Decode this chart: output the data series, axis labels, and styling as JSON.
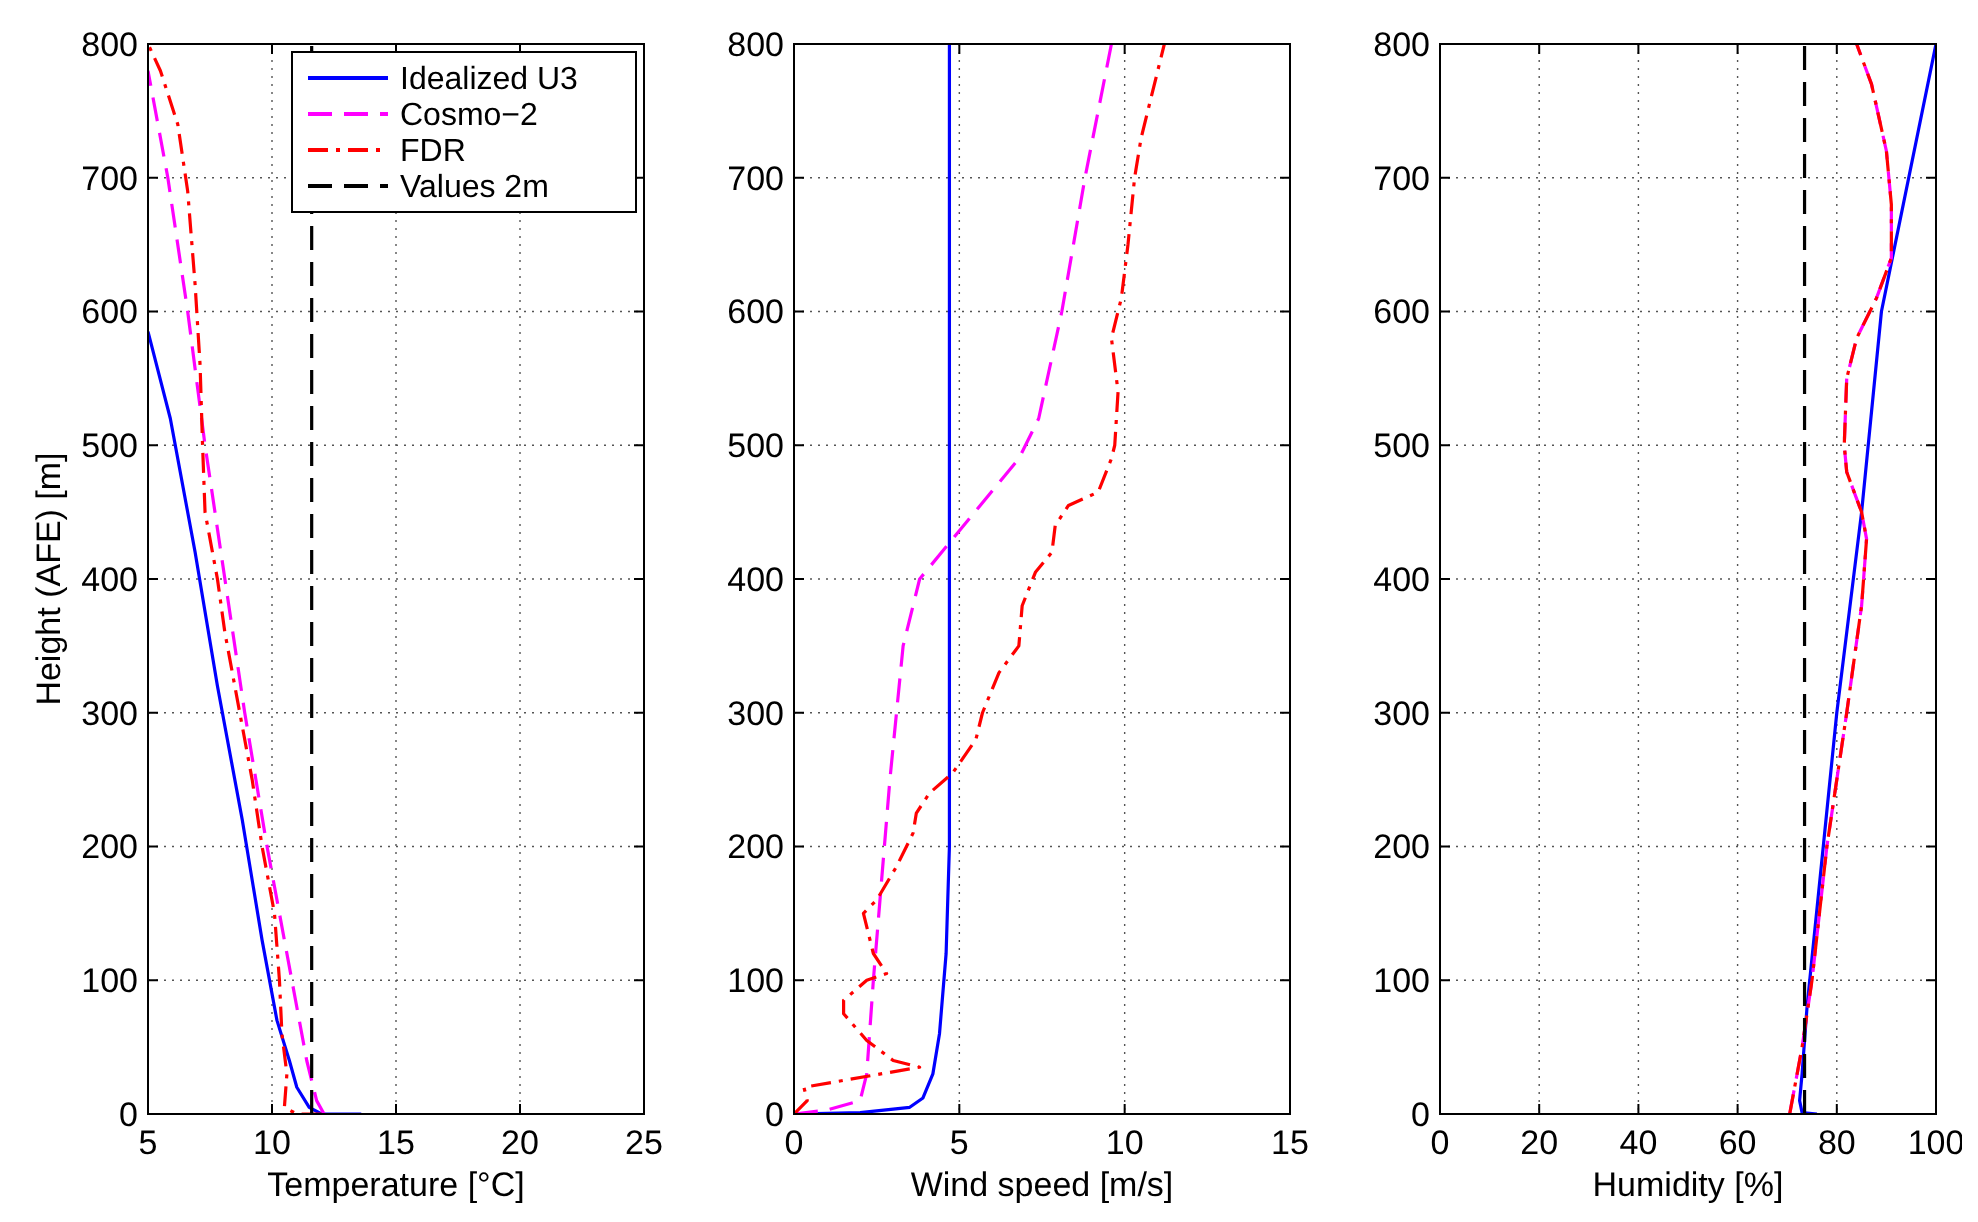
{
  "chart_data": [
    {
      "type": "line",
      "xlabel": "Temperature [°C]",
      "ylabel": "Height (AFE) [m]",
      "xlim": [
        5,
        25
      ],
      "xticks": [
        5,
        10,
        15,
        20,
        25
      ],
      "ylim": [
        0,
        800
      ],
      "yticks": [
        0,
        100,
        200,
        300,
        400,
        500,
        600,
        700,
        800
      ],
      "grid": true,
      "legend": "top right",
      "series": [
        {
          "name": "Idealized U3",
          "color": "#0000ff",
          "line_style": "solid",
          "x": [
            13.6,
            12,
            11.5,
            11,
            10.7,
            10.2,
            9.6,
            8.8,
            7.8,
            6.9,
            5.9,
            5
          ],
          "values": [
            0,
            0,
            5,
            20,
            40,
            70,
            130,
            220,
            320,
            420,
            520,
            585
          ]
        },
        {
          "name": "Cosmo−2",
          "color": "#ff00ff",
          "line_style": "dashed",
          "x": [
            12.1,
            11.8,
            11.4,
            11,
            10.5,
            9.8,
            8.9,
            8.1,
            7.3,
            6.6,
            5.8,
            5
          ],
          "values": [
            0,
            10,
            40,
            80,
            130,
            200,
            300,
            400,
            500,
            600,
            700,
            780
          ]
        },
        {
          "name": "FDR",
          "color": "#ff0000",
          "line_style": "dashdot",
          "x": [
            12,
            11,
            10.5,
            10.6,
            10.4,
            10.3,
            10.1,
            9.6,
            9.2,
            8.7,
            8.1,
            7.8,
            7.3,
            7.2,
            7.1,
            6.9,
            6.6,
            6.2,
            5.5,
            5
          ],
          "values": [
            0,
            0,
            5,
            30,
            60,
            100,
            150,
            200,
            250,
            300,
            360,
            400,
            450,
            500,
            560,
            620,
            690,
            740,
            780,
            800
          ]
        },
        {
          "name": "Values 2m",
          "color": "#000000",
          "line_style": "dashed",
          "x": [
            11.6,
            11.6
          ],
          "values": [
            0,
            800
          ]
        }
      ]
    },
    {
      "type": "line",
      "xlabel": "Wind speed [m/s]",
      "xlim": [
        0,
        15
      ],
      "xticks": [
        0,
        5,
        10,
        15
      ],
      "ylim": [
        0,
        800
      ],
      "yticks": [
        0,
        100,
        200,
        300,
        400,
        500,
        600,
        700,
        800
      ],
      "grid": true,
      "series": [
        {
          "color": "#0000ff",
          "line_style": "solid",
          "x": [
            0,
            2,
            3.5,
            3.9,
            4.2,
            4.4,
            4.6,
            4.7,
            4.7
          ],
          "values": [
            0,
            1,
            5,
            12,
            30,
            60,
            120,
            200,
            800
          ]
        },
        {
          "color": "#ff00ff",
          "line_style": "dashed",
          "x": [
            0,
            1,
            2,
            2.2,
            2.4,
            2.6,
            2.9,
            3.3,
            3.8,
            4.8,
            6.8,
            7.4,
            8.1,
            8.8,
            9.6
          ],
          "values": [
            0,
            3,
            10,
            30,
            100,
            160,
            250,
            350,
            400,
            430,
            490,
            520,
            600,
            700,
            800
          ]
        },
        {
          "color": "#ff0000",
          "line_style": "dashdot",
          "x": [
            0,
            0.4,
            0.3,
            3.8,
            3,
            2.2,
            1.5,
            1.5,
            2.2,
            2.8,
            2.4,
            2.1,
            2.5,
            3.1,
            3.6,
            3.7,
            4.1,
            4.8,
            5.5,
            5.7,
            6.2,
            6.8,
            6.9,
            7.3,
            7.8,
            7.9,
            8.3,
            9.2,
            9.6,
            9.7,
            9.8,
            9.6,
            9.9,
            10.1,
            10.3,
            10.5,
            10.7,
            11.1,
            11.2
          ],
          "values": [
            0,
            10,
            20,
            35,
            40,
            55,
            75,
            85,
            100,
            105,
            120,
            150,
            160,
            185,
            210,
            225,
            240,
            255,
            280,
            300,
            330,
            350,
            380,
            405,
            420,
            440,
            455,
            465,
            490,
            500,
            540,
            580,
            610,
            650,
            700,
            730,
            750,
            790,
            800
          ]
        }
      ]
    },
    {
      "type": "line",
      "xlabel": "Humidity [%]",
      "xlim": [
        0,
        100
      ],
      "xticks": [
        0,
        20,
        40,
        60,
        80,
        100
      ],
      "ylim": [
        0,
        800
      ],
      "yticks": [
        0,
        100,
        200,
        300,
        400,
        500,
        600,
        700,
        800
      ],
      "grid": true,
      "series": [
        {
          "color": "#0000ff",
          "line_style": "solid",
          "x": [
            76,
            73,
            72.5,
            73,
            74,
            80,
            85,
            89,
            100
          ],
          "values": [
            0,
            1,
            10,
            30,
            80,
            300,
            450,
            600,
            800
          ]
        },
        {
          "color": "#ff00ff",
          "line_style": "dashed",
          "x": [
            70.5,
            73,
            75,
            78,
            82,
            85,
            86,
            85,
            82,
            81.5,
            82,
            84,
            88,
            91,
            91,
            90,
            87,
            84
          ],
          "values": [
            0,
            50,
            100,
            200,
            300,
            380,
            430,
            450,
            480,
            500,
            550,
            580,
            610,
            640,
            680,
            720,
            770,
            800
          ]
        },
        {
          "color": "#ff0000",
          "line_style": "dashdot",
          "x": [
            70.5,
            73,
            75,
            78,
            82,
            85,
            86,
            85,
            82,
            81.5,
            82,
            84,
            88,
            91,
            91,
            90,
            87,
            84
          ],
          "values": [
            0,
            50,
            100,
            200,
            300,
            380,
            430,
            450,
            480,
            500,
            550,
            580,
            610,
            640,
            680,
            720,
            770,
            800
          ]
        },
        {
          "color": "#000000",
          "line_style": "dashed",
          "x": [
            73.5,
            73.5
          ],
          "values": [
            0,
            800
          ]
        }
      ]
    }
  ]
}
